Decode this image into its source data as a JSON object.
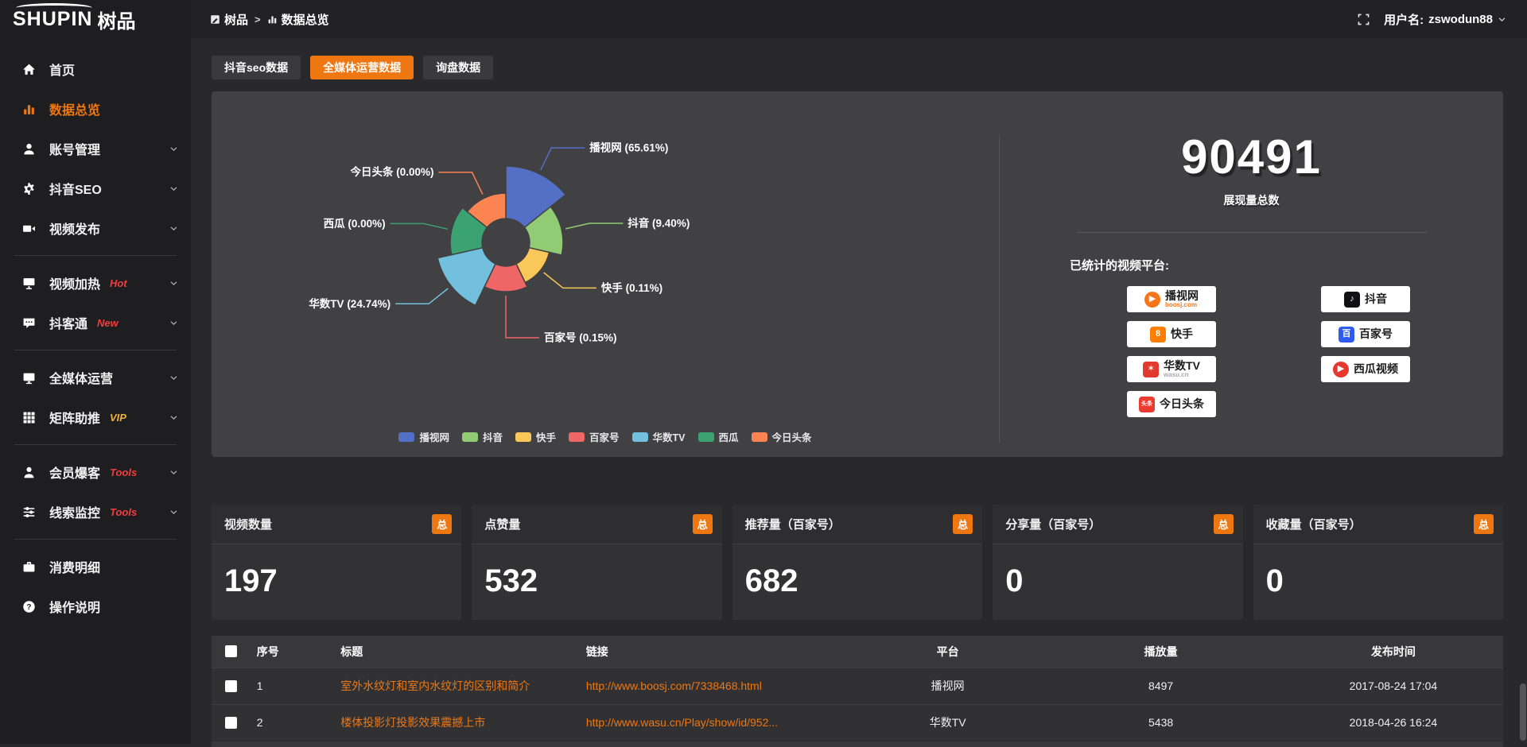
{
  "header": {
    "logo_text": "SHUPIN",
    "logo_cn": "树品",
    "breadcrumb": [
      {
        "label": "树品"
      },
      {
        "label": "数据总览"
      }
    ],
    "breadcrumb_sep": ">",
    "username_label": "用户名:",
    "username": "zswodun88"
  },
  "sidebar": {
    "items": [
      {
        "id": "home",
        "label": "首页",
        "icon": "home-icon"
      },
      {
        "id": "data-overview",
        "label": "数据总览",
        "icon": "chart-bar-icon",
        "active": true
      },
      {
        "id": "account-manage",
        "label": "账号管理",
        "icon": "user-icon",
        "chevron": true
      },
      {
        "id": "douyin-seo",
        "label": "抖音SEO",
        "icon": "gear-icon",
        "chevron": true
      },
      {
        "id": "video-publish",
        "label": "视频发布",
        "icon": "video-publish-icon",
        "chevron": true
      },
      {
        "divider": true
      },
      {
        "id": "video-heat",
        "label": "视频加热",
        "icon": "heat-icon",
        "tag": "Hot",
        "tag_color": "#f03e3e",
        "chevron": true
      },
      {
        "id": "douketong",
        "label": "抖客通",
        "icon": "chat-icon",
        "tag": "New",
        "tag_color": "#f03e3e",
        "chevron": true
      },
      {
        "divider": true
      },
      {
        "id": "media-ops",
        "label": "全媒体运营",
        "icon": "monitor-icon",
        "chevron": true
      },
      {
        "id": "matrix-boost",
        "label": "矩阵助推",
        "icon": "grid-icon",
        "tag": "VIP",
        "tag_color": "#efb041",
        "chevron": true
      },
      {
        "divider": true
      },
      {
        "id": "member-baoke",
        "label": "会员爆客",
        "icon": "member-icon",
        "tag": "Tools",
        "tag_color": "#f03e3e",
        "chevron": true
      },
      {
        "id": "leads-monitor",
        "label": "线索监控",
        "icon": "sliders-icon",
        "tag": "Tools",
        "tag_color": "#f03e3e",
        "chevron": true
      },
      {
        "divider": true
      },
      {
        "id": "spend-detail",
        "label": "消费明细",
        "icon": "wallet-icon"
      },
      {
        "id": "help",
        "label": "操作说明",
        "icon": "help-icon"
      }
    ]
  },
  "tabs": [
    {
      "id": "douyin-seo-data",
      "label": "抖音seo数据"
    },
    {
      "id": "media-ops-data",
      "label": "全媒体运营数据",
      "active": true
    },
    {
      "id": "inquiry-data",
      "label": "询盘数据"
    }
  ],
  "chart_data": {
    "type": "pie",
    "variant": "nightingale-rose",
    "labels": [
      "播视网",
      "抖音",
      "快手",
      "百家号",
      "华数TV",
      "西瓜",
      "今日头条"
    ],
    "values": [
      65.61,
      9.4,
      0.11,
      0.15,
      24.74,
      0.0,
      0.0
    ],
    "colors": [
      "#5470c6",
      "#91cc75",
      "#fac858",
      "#ee6666",
      "#73c0de",
      "#3ba272",
      "#fc8452"
    ],
    "label_format": "name (value%)",
    "legend_position": "bottom",
    "inner_radius": 30,
    "radii": [
      96,
      72,
      56,
      62,
      88,
      70,
      62
    ]
  },
  "right_panel": {
    "total": "90491",
    "total_label": "展现量总数",
    "platforms_label": "已统计的视频平台:",
    "platforms": [
      {
        "name": "播视网",
        "icon": "boosj-logo",
        "color": "#f97416",
        "sub": "boosj.com",
        "sub_color": "#f97416"
      },
      {
        "name": "抖音",
        "icon": "douyin-logo",
        "color": "#111115"
      },
      {
        "name": "快手",
        "icon": "kuaishou-logo",
        "color": "#ff7e00"
      },
      {
        "name": "百家号",
        "icon": "baijiahao-logo",
        "color": "#2e5bf0"
      },
      {
        "name": "华数TV",
        "icon": "wasu-logo",
        "color": "#e23a2e",
        "sub": "wasu.cn",
        "sub_color": "#a9a9a9"
      },
      {
        "name": "西瓜视频",
        "icon": "xigua-logo",
        "color": "#e8372c"
      },
      {
        "name": "今日头条",
        "icon": "toutiao-logo",
        "color": "#ed3b2f"
      }
    ]
  },
  "stat_cards": [
    {
      "title": "视频数量",
      "badge": "总",
      "value": "197"
    },
    {
      "title": "点赞量",
      "badge": "总",
      "value": "532"
    },
    {
      "title": "推荐量（百家号）",
      "badge": "总",
      "value": "682"
    },
    {
      "title": "分享量（百家号）",
      "badge": "总",
      "value": "0"
    },
    {
      "title": "收藏量（百家号）",
      "badge": "总",
      "value": "0"
    }
  ],
  "table": {
    "columns": [
      "序号",
      "标题",
      "链接",
      "平台",
      "播放量",
      "发布时间"
    ],
    "rows": [
      {
        "num": "1",
        "title": "室外水纹灯和室内水纹灯的区别和简介",
        "link": "http://www.boosj.com/7338468.html",
        "platform": "播视网",
        "plays": "8497",
        "time": "2017-08-24 17:04"
      },
      {
        "num": "2",
        "title": "楼体投影灯投影效果震撼上市",
        "link": "http://www.wasu.cn/Play/show/id/952...",
        "platform": "华数TV",
        "plays": "5438",
        "time": "2018-04-26 16:24"
      }
    ]
  }
}
